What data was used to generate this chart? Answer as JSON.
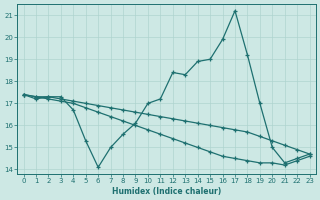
{
  "xlabel": "Humidex (Indice chaleur)",
  "bg_color": "#cde8e4",
  "line_color": "#1e7070",
  "grid_color": "#afd4cf",
  "x_values": [
    0,
    1,
    2,
    3,
    4,
    5,
    6,
    7,
    8,
    9,
    10,
    11,
    12,
    13,
    14,
    15,
    16,
    17,
    18,
    19,
    20,
    21,
    22,
    23
  ],
  "line1_y": [
    17.4,
    17.2,
    17.3,
    17.3,
    16.7,
    15.3,
    14.1,
    15.0,
    15.6,
    16.1,
    17.0,
    17.2,
    18.4,
    18.3,
    18.9,
    19.0,
    19.9,
    21.2,
    19.2,
    17.0,
    15.0,
    14.3,
    14.5,
    14.7
  ],
  "line2_y": [
    17.4,
    17.3,
    17.3,
    17.2,
    17.1,
    17.0,
    16.9,
    16.8,
    16.7,
    16.6,
    16.5,
    16.4,
    16.3,
    16.2,
    16.1,
    16.0,
    15.9,
    15.8,
    15.7,
    15.5,
    15.3,
    15.1,
    14.9,
    14.7
  ],
  "line3_y": [
    17.4,
    17.3,
    17.2,
    17.1,
    17.0,
    16.8,
    16.6,
    16.4,
    16.2,
    16.0,
    15.8,
    15.6,
    15.4,
    15.2,
    15.0,
    14.8,
    14.6,
    14.5,
    14.4,
    14.3,
    14.3,
    14.2,
    14.4,
    14.6
  ],
  "ylim": [
    13.8,
    21.5
  ],
  "yticks": [
    14,
    15,
    16,
    17,
    18,
    19,
    20,
    21
  ],
  "xticks": [
    0,
    1,
    2,
    3,
    4,
    5,
    6,
    7,
    8,
    9,
    10,
    11,
    12,
    13,
    14,
    15,
    16,
    17,
    18,
    19,
    20,
    21,
    22,
    23
  ]
}
